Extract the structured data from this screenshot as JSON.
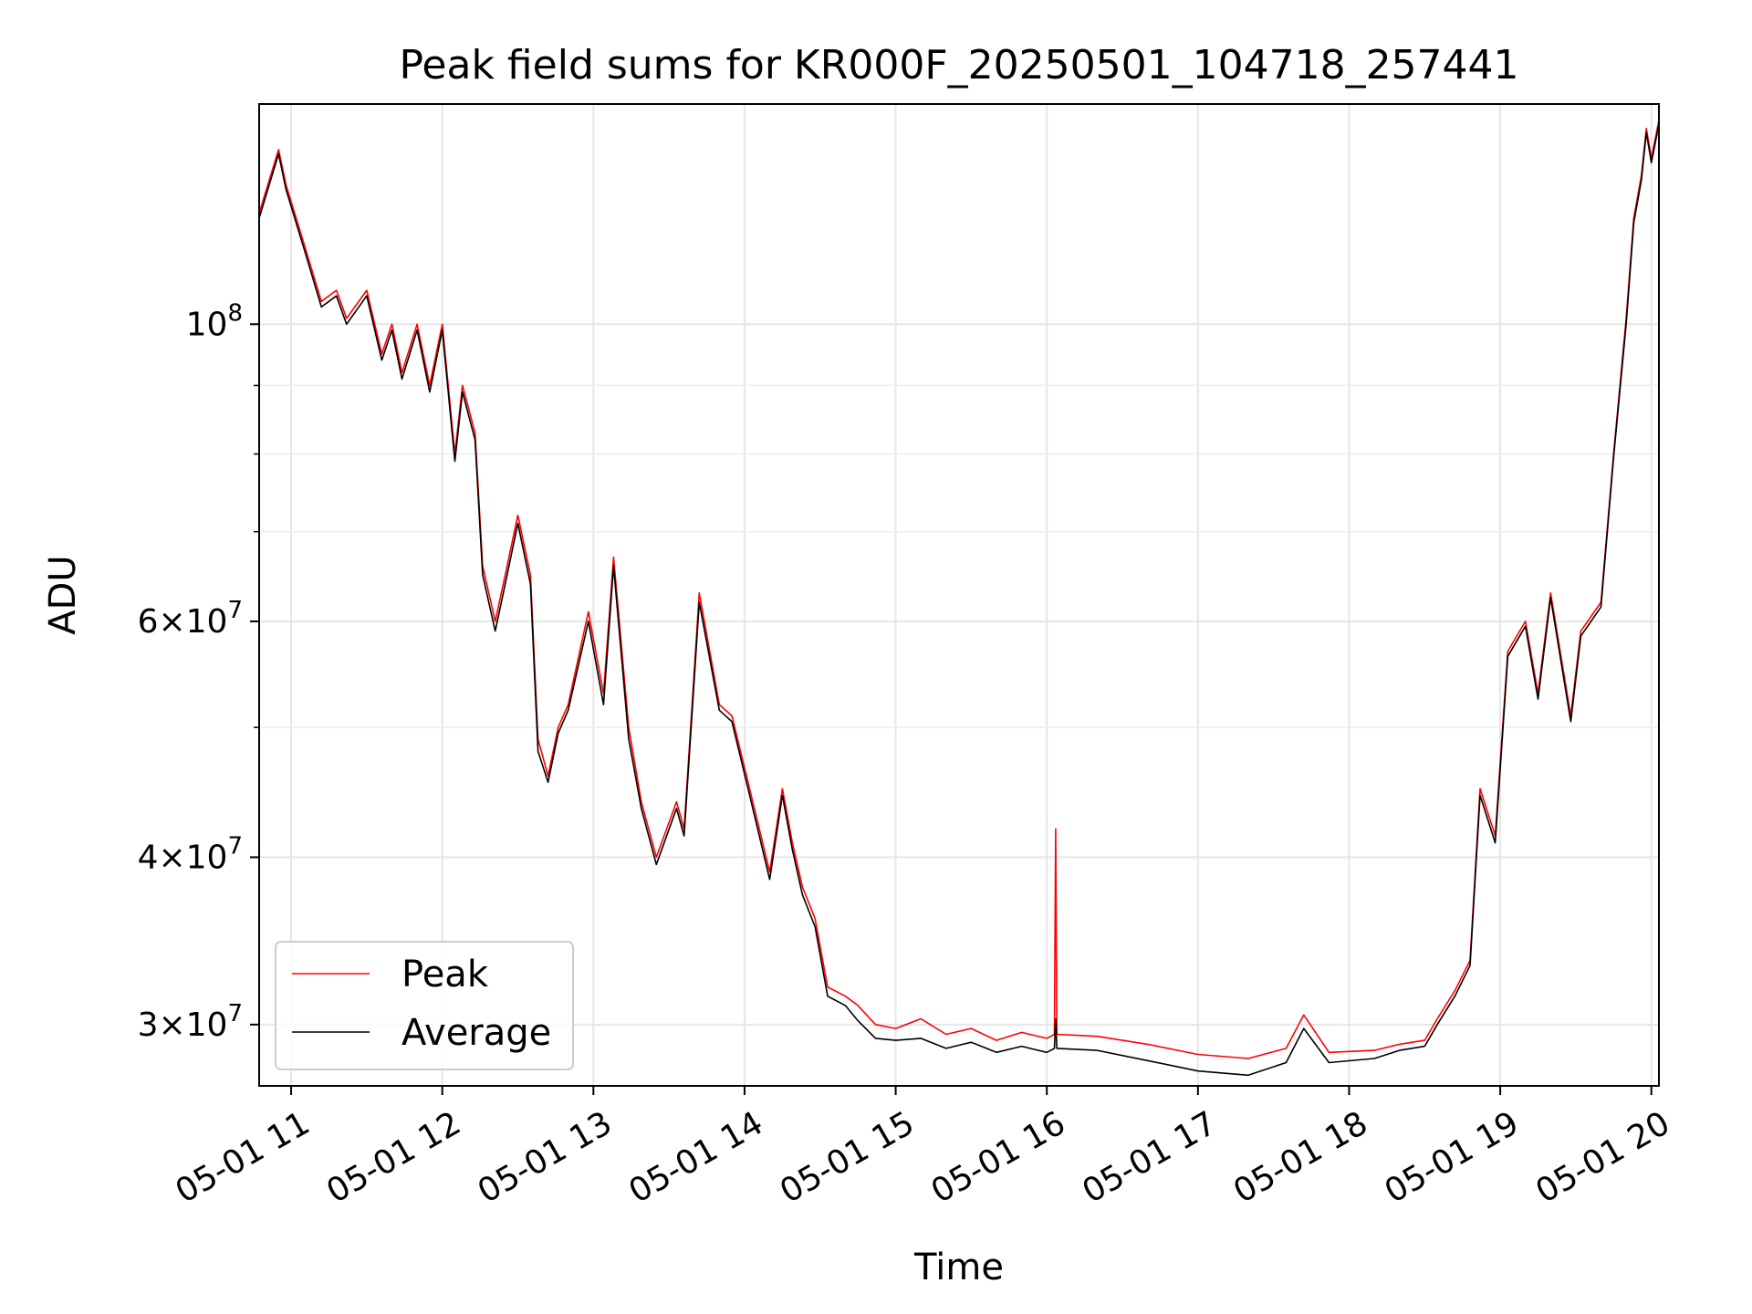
{
  "chart_data": {
    "type": "line",
    "title": "Peak field sums for KR000F_20250501_104718_257441",
    "xlabel": "Time",
    "ylabel": "ADU",
    "yscale": "log",
    "ylim": [
      27000000,
      146000000
    ],
    "xlim": [
      "2025-05-01 10:47:18",
      "2025-05-01 20:03:00"
    ],
    "grid": true,
    "legend_position": "lower-left",
    "x_ticks": [
      {
        "value": "2025-05-01 11:00",
        "label": "05-01 11"
      },
      {
        "value": "2025-05-01 12:00",
        "label": "05-01 12"
      },
      {
        "value": "2025-05-01 13:00",
        "label": "05-01 13"
      },
      {
        "value": "2025-05-01 14:00",
        "label": "05-01 14"
      },
      {
        "value": "2025-05-01 15:00",
        "label": "05-01 15"
      },
      {
        "value": "2025-05-01 16:00",
        "label": "05-01 16"
      },
      {
        "value": "2025-05-01 17:00",
        "label": "05-01 17"
      },
      {
        "value": "2025-05-01 18:00",
        "label": "05-01 18"
      },
      {
        "value": "2025-05-01 19:00",
        "label": "05-01 19"
      },
      {
        "value": "2025-05-01 20:00",
        "label": "05-01 20"
      }
    ],
    "y_ticks": [
      {
        "value": 30000000,
        "mantissa": "3",
        "base": "10",
        "exp": "7"
      },
      {
        "value": 40000000,
        "mantissa": "4",
        "base": "10",
        "exp": "7"
      },
      {
        "value": 60000000,
        "mantissa": "6",
        "base": "10",
        "exp": "7"
      },
      {
        "value": 100000000,
        "mantissa": "",
        "base": "10",
        "exp": "8"
      }
    ],
    "y_minor_ticks": [
      50000000,
      70000000,
      80000000,
      90000000
    ],
    "series": [
      {
        "name": "Peak",
        "color": "#ff0000",
        "x": [
          "2025-05-01 10:47:18",
          "2025-05-01 10:55",
          "2025-05-01 10:58",
          "2025-05-01 11:05",
          "2025-05-01 11:12",
          "2025-05-01 11:18",
          "2025-05-01 11:22",
          "2025-05-01 11:30",
          "2025-05-01 11:36",
          "2025-05-01 11:40",
          "2025-05-01 11:44",
          "2025-05-01 11:50",
          "2025-05-01 11:55",
          "2025-05-01 12:00",
          "2025-05-01 12:05",
          "2025-05-01 12:08",
          "2025-05-01 12:13",
          "2025-05-01 12:16",
          "2025-05-01 12:21",
          "2025-05-01 12:25",
          "2025-05-01 12:30",
          "2025-05-01 12:35",
          "2025-05-01 12:38",
          "2025-05-01 12:42",
          "2025-05-01 12:46",
          "2025-05-01 12:50",
          "2025-05-01 12:58",
          "2025-05-01 13:04",
          "2025-05-01 13:08",
          "2025-05-01 13:14",
          "2025-05-01 13:19",
          "2025-05-01 13:25",
          "2025-05-01 13:33",
          "2025-05-01 13:36",
          "2025-05-01 13:42",
          "2025-05-01 13:50",
          "2025-05-01 13:55",
          "2025-05-01 14:02",
          "2025-05-01 14:10",
          "2025-05-01 14:15",
          "2025-05-01 14:19",
          "2025-05-01 14:23",
          "2025-05-01 14:28",
          "2025-05-01 14:33",
          "2025-05-01 14:40",
          "2025-05-01 14:45",
          "2025-05-01 14:52",
          "2025-05-01 15:00",
          "2025-05-01 15:10",
          "2025-05-01 15:20",
          "2025-05-01 15:30",
          "2025-05-01 15:40",
          "2025-05-01 15:50",
          "2025-05-01 16:00",
          "2025-05-01 16:03",
          "2025-05-01 16:03:30",
          "2025-05-01 16:04",
          "2025-05-01 16:20",
          "2025-05-01 16:40",
          "2025-05-01 17:00",
          "2025-05-01 17:20",
          "2025-05-01 17:35",
          "2025-05-01 17:42",
          "2025-05-01 17:52",
          "2025-05-01 18:10",
          "2025-05-01 18:20",
          "2025-05-01 18:30",
          "2025-05-01 18:35",
          "2025-05-01 18:42",
          "2025-05-01 18:48",
          "2025-05-01 18:52",
          "2025-05-01 18:58",
          "2025-05-01 19:03",
          "2025-05-01 19:10",
          "2025-05-01 19:15",
          "2025-05-01 19:20",
          "2025-05-01 19:28",
          "2025-05-01 19:32",
          "2025-05-01 19:40",
          "2025-05-01 19:45",
          "2025-05-01 19:50",
          "2025-05-01 19:53",
          "2025-05-01 19:56",
          "2025-05-01 19:58",
          "2025-05-01 20:00",
          "2025-05-01 20:03"
        ],
        "y": [
          121000000,
          135000000,
          127000000,
          115000000,
          104000000,
          106000000,
          101000000,
          106000000,
          95000000,
          100000000,
          92000000,
          100000000,
          90000000,
          100000000,
          80000000,
          90000000,
          83000000,
          66000000,
          60000000,
          65000000,
          72000000,
          65000000,
          49000000,
          46000000,
          50000000,
          52000000,
          61000000,
          53000000,
          67000000,
          50000000,
          44000000,
          40000000,
          44000000,
          42000000,
          63000000,
          52000000,
          51000000,
          45000000,
          39000000,
          45000000,
          41000000,
          38000000,
          36000000,
          32000000,
          31500000,
          31000000,
          30000000,
          29800000,
          30300000,
          29500000,
          29800000,
          29200000,
          29600000,
          29300000,
          29500000,
          42000000,
          29500000,
          29400000,
          29000000,
          28500000,
          28300000,
          28800000,
          30500000,
          28600000,
          28700000,
          29000000,
          29200000,
          30300000,
          31800000,
          33500000,
          45000000,
          41500000,
          57000000,
          60000000,
          53000000,
          63000000,
          51000000,
          59000000,
          62000000,
          80000000,
          101000000,
          120000000,
          129000000,
          140000000,
          133000000,
          142000000
        ]
      },
      {
        "name": "Average",
        "color": "#000000",
        "x": [
          "2025-05-01 10:47:18",
          "2025-05-01 10:55",
          "2025-05-01 10:58",
          "2025-05-01 11:05",
          "2025-05-01 11:12",
          "2025-05-01 11:18",
          "2025-05-01 11:22",
          "2025-05-01 11:30",
          "2025-05-01 11:36",
          "2025-05-01 11:40",
          "2025-05-01 11:44",
          "2025-05-01 11:50",
          "2025-05-01 11:55",
          "2025-05-01 12:00",
          "2025-05-01 12:05",
          "2025-05-01 12:08",
          "2025-05-01 12:13",
          "2025-05-01 12:16",
          "2025-05-01 12:21",
          "2025-05-01 12:25",
          "2025-05-01 12:30",
          "2025-05-01 12:35",
          "2025-05-01 12:38",
          "2025-05-01 12:42",
          "2025-05-01 12:46",
          "2025-05-01 12:50",
          "2025-05-01 12:58",
          "2025-05-01 13:04",
          "2025-05-01 13:08",
          "2025-05-01 13:14",
          "2025-05-01 13:19",
          "2025-05-01 13:25",
          "2025-05-01 13:33",
          "2025-05-01 13:36",
          "2025-05-01 13:42",
          "2025-05-01 13:50",
          "2025-05-01 13:55",
          "2025-05-01 14:02",
          "2025-05-01 14:10",
          "2025-05-01 14:15",
          "2025-05-01 14:19",
          "2025-05-01 14:23",
          "2025-05-01 14:28",
          "2025-05-01 14:33",
          "2025-05-01 14:40",
          "2025-05-01 14:45",
          "2025-05-01 14:52",
          "2025-05-01 15:00",
          "2025-05-01 15:10",
          "2025-05-01 15:20",
          "2025-05-01 15:30",
          "2025-05-01 15:40",
          "2025-05-01 15:50",
          "2025-05-01 16:00",
          "2025-05-01 16:03",
          "2025-05-01 16:03:30",
          "2025-05-01 16:04",
          "2025-05-01 16:20",
          "2025-05-01 16:40",
          "2025-05-01 17:00",
          "2025-05-01 17:20",
          "2025-05-01 17:35",
          "2025-05-01 17:42",
          "2025-05-01 17:52",
          "2025-05-01 18:10",
          "2025-05-01 18:20",
          "2025-05-01 18:30",
          "2025-05-01 18:35",
          "2025-05-01 18:42",
          "2025-05-01 18:48",
          "2025-05-01 18:52",
          "2025-05-01 18:58",
          "2025-05-01 19:03",
          "2025-05-01 19:10",
          "2025-05-01 19:15",
          "2025-05-01 19:20",
          "2025-05-01 19:28",
          "2025-05-01 19:32",
          "2025-05-01 19:40",
          "2025-05-01 19:45",
          "2025-05-01 19:50",
          "2025-05-01 19:53",
          "2025-05-01 19:56",
          "2025-05-01 19:58",
          "2025-05-01 20:00",
          "2025-05-01 20:03"
        ],
        "y": [
          120000000,
          134000000,
          126000000,
          114000000,
          103000000,
          105000000,
          100000000,
          105000000,
          94000000,
          99000000,
          91000000,
          99000000,
          89000000,
          99000000,
          79000000,
          89000000,
          82000000,
          65000000,
          59000000,
          64000000,
          71000000,
          64000000,
          48000000,
          45500000,
          49500000,
          51500000,
          60000000,
          52000000,
          66000000,
          49000000,
          43500000,
          39500000,
          43500000,
          41500000,
          62000000,
          51500000,
          50500000,
          44500000,
          38500000,
          44500000,
          40500000,
          37500000,
          35500000,
          31500000,
          31000000,
          30200000,
          29300000,
          29200000,
          29300000,
          28800000,
          29100000,
          28600000,
          28900000,
          28600000,
          28800000,
          30300000,
          28800000,
          28700000,
          28200000,
          27700000,
          27500000,
          28100000,
          29800000,
          28100000,
          28300000,
          28700000,
          28900000,
          30000000,
          31500000,
          33200000,
          44500000,
          41000000,
          56500000,
          59500000,
          52500000,
          62500000,
          50500000,
          58500000,
          61500000,
          79500000,
          100000000,
          119000000,
          128000000,
          139000000,
          132000000,
          141000000
        ]
      }
    ]
  }
}
